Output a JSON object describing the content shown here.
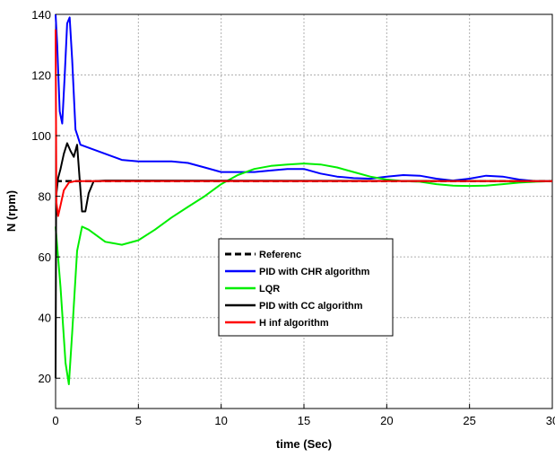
{
  "chart_data": {
    "type": "line",
    "title": "",
    "xlabel": "time (Sec)",
    "ylabel": "N (rpm)",
    "xlim": [
      0,
      30
    ],
    "ylim": [
      10,
      140
    ],
    "xticks": [
      0,
      5,
      10,
      15,
      20,
      25,
      30
    ],
    "xtick_labels": [
      "0",
      "5",
      "10",
      "15",
      "20",
      "25",
      "30"
    ],
    "yticks": [
      20,
      40,
      60,
      80,
      100,
      120,
      140
    ],
    "ytick_labels": [
      "20",
      "40",
      "60",
      "80",
      "100",
      "120",
      "140"
    ],
    "grid": true,
    "legend_position": "center",
    "series": [
      {
        "name": "Referenc",
        "color": "#000000",
        "dash": true,
        "x": [
          0,
          30
        ],
        "y": [
          85,
          85
        ]
      },
      {
        "name": "PID with CHR algorithm",
        "color": "#0000ff",
        "dash": false,
        "x": [
          0,
          0.1,
          0.25,
          0.4,
          0.55,
          0.7,
          0.85,
          1.0,
          1.2,
          1.5,
          2,
          3,
          4,
          5,
          6,
          7,
          8,
          9,
          10,
          11,
          12,
          13,
          14,
          15,
          16,
          17,
          18,
          19,
          20,
          21,
          22,
          23,
          24,
          25,
          26,
          27,
          28,
          29,
          30
        ],
        "y": [
          140,
          130,
          108,
          104,
          120,
          137,
          139,
          125,
          102,
          97,
          96,
          94,
          92,
          91.5,
          91.5,
          91.5,
          91,
          89.5,
          88,
          88,
          88,
          88.5,
          89,
          89,
          87.5,
          86.5,
          86,
          85.8,
          86.5,
          87,
          86.8,
          85.8,
          85.2,
          85.8,
          86.8,
          86.5,
          85.5,
          85,
          85
        ]
      },
      {
        "name": "LQR",
        "color": "#00ee00",
        "dash": false,
        "x": [
          0,
          0.3,
          0.6,
          0.8,
          1.0,
          1.3,
          1.6,
          2,
          3,
          4,
          5,
          6,
          7,
          8,
          9,
          10,
          11,
          12,
          13,
          14,
          15,
          16,
          17,
          18,
          19,
          20,
          21,
          22,
          23,
          24,
          25,
          26,
          27,
          28,
          29,
          30
        ],
        "y": [
          70,
          50,
          25,
          18,
          35,
          62,
          70,
          69,
          65,
          64,
          65.5,
          69,
          73,
          76.5,
          80,
          84,
          87,
          89,
          90,
          90.5,
          90.8,
          90.5,
          89.5,
          88,
          86.5,
          85.5,
          85,
          84.8,
          84,
          83.5,
          83.4,
          83.5,
          84,
          84.5,
          84.8,
          85
        ]
      },
      {
        "name": "PID with CC algorithm",
        "color": "#000000",
        "dash": false,
        "x": [
          0,
          0.03,
          0.15,
          0.3,
          0.5,
          0.7,
          0.9,
          1.1,
          1.3,
          1.6,
          1.8,
          2.0,
          2.3,
          3,
          30
        ],
        "y": [
          20,
          80,
          86,
          89,
          94,
          97.5,
          95,
          93,
          97,
          75,
          75,
          81,
          85,
          85.2,
          85
        ]
      },
      {
        "name": "H inf algorithm",
        "color": "#ff0000",
        "dash": false,
        "x": [
          0,
          0.05,
          0.15,
          0.3,
          0.5,
          0.8,
          1.2,
          2,
          30
        ],
        "y": [
          135,
          78,
          73.5,
          77,
          82,
          84.5,
          85,
          85,
          85
        ]
      }
    ]
  }
}
